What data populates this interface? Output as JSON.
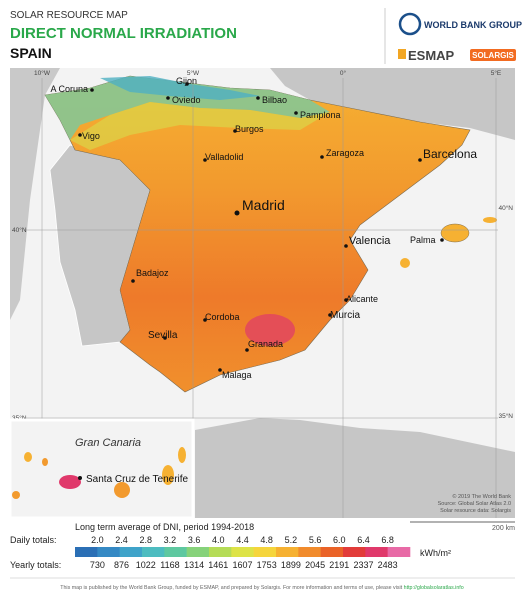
{
  "header": {
    "super_title": "SOLAR RESOURCE MAP",
    "title": "DIRECT NORMAL IRRADIATION",
    "country": "SPAIN"
  },
  "logos": {
    "world_bank": "WORLD BANK GROUP",
    "esmap": "ESMAP",
    "solargis": "SOLARGIS"
  },
  "map": {
    "meridians": [
      "10°W",
      "5°W",
      "0°",
      "5°E"
    ],
    "parallels": [
      "40°N",
      "35°N"
    ],
    "cities": [
      "A Coruna",
      "Gijon",
      "Oviedo",
      "Bilbao",
      "Pamplona",
      "Burgos",
      "Vigo",
      "Valladolid",
      "Zaragoza",
      "Barcelona",
      "Madrid",
      "Valencia",
      "Palma",
      "Badajoz",
      "Alicante",
      "Murcia",
      "Cordoba",
      "Sevilla",
      "Granada",
      "Malaga"
    ],
    "inset_title": "Gran Canaria",
    "inset_city": "Santa Cruz de Tenerife",
    "credits": [
      "© 2019 The World Bank",
      "Source: Global Solar Atlas 2.0",
      "Solar resource data: Solargis"
    ],
    "scale": "200 km"
  },
  "legend": {
    "caption": "Long term average of DNI, period 1994-2018",
    "daily_label": "Daily totals:",
    "daily": [
      "2.0",
      "2.4",
      "2.8",
      "3.2",
      "3.6",
      "4.0",
      "4.4",
      "4.8",
      "5.2",
      "5.6",
      "6.0",
      "6.4",
      "6.8"
    ],
    "yearly_label": "Yearly totals:",
    "yearly": [
      "730",
      "876",
      "1022",
      "1168",
      "1314",
      "1461",
      "1607",
      "1753",
      "1899",
      "2045",
      "2191",
      "2337",
      "2483"
    ],
    "unit": "kWh/m²",
    "colors": [
      "#2b6fb5",
      "#3589c4",
      "#3fa3c9",
      "#4dbcc0",
      "#5ec8a0",
      "#86d27a",
      "#b5dc57",
      "#dde347",
      "#f5d53c",
      "#f6b132",
      "#f18b2c",
      "#ea6328",
      "#e23c3a",
      "#e0396b",
      "#e86aa6"
    ]
  },
  "footer": {
    "text": "This map is published by the World Bank Group, funded by ESMAP, and prepared by Solargis. For more information and terms of use, please visit",
    "link": "http://globalsolaratlas.info"
  }
}
